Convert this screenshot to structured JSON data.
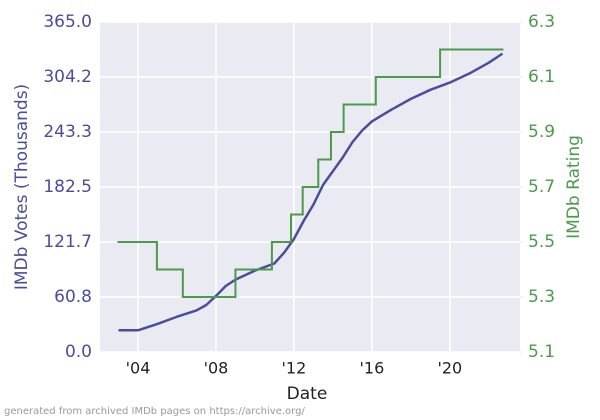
{
  "chart_data": {
    "type": "line",
    "xlabel": "Date",
    "ylabel": "IMDb Votes (Thousands)",
    "y2label": "IMDb Rating",
    "footnote": "generated from archived IMDb pages on https://archive.org/",
    "xlim": [
      2002.05,
      2023.6
    ],
    "xticks": [
      {
        "value": 2004,
        "label": "'04"
      },
      {
        "value": 2008,
        "label": "'08"
      },
      {
        "value": 2012,
        "label": "'12"
      },
      {
        "value": 2016,
        "label": "'16"
      },
      {
        "value": 2020,
        "label": "'20"
      }
    ],
    "ylim": [
      0,
      365
    ],
    "yticks": [
      {
        "value": 0,
        "label": "0.0"
      },
      60.8,
      121.7,
      182.5,
      243.3,
      304.2,
      {
        "value": 365,
        "label": "365.0"
      }
    ],
    "y2lim": [
      5.1,
      6.3
    ],
    "y2ticks": [
      5.1,
      5.3,
      5.5,
      5.7,
      5.9,
      6.1,
      6.3
    ],
    "grid": true,
    "series": [
      {
        "name": "IMDb Votes",
        "color": "#4c4c9c",
        "x": [
          2003.0,
          2004.0,
          2005.0,
          2006.0,
          2007.0,
          2007.5,
          2008.0,
          2008.5,
          2009.0,
          2010.0,
          2011.0,
          2011.5,
          2012.0,
          2012.5,
          2013.0,
          2013.5,
          2014.0,
          2014.5,
          2015.0,
          2015.5,
          2016.0,
          2017.0,
          2018.0,
          2019.0,
          2020.0,
          2021.0,
          2022.0,
          2022.7
        ],
        "values": [
          24,
          24,
          31,
          39,
          46,
          52,
          62,
          73,
          80,
          90,
          98,
          110,
          125,
          145,
          163,
          185,
          200,
          215,
          232,
          245,
          255,
          268,
          280,
          290,
          298,
          308,
          320,
          330
        ]
      },
      {
        "name": "IMDb Rating",
        "color": "#4c9a4c",
        "axis": "y2",
        "drawstyle": "steps-post",
        "x": [
          2003.0,
          2004.97,
          2006.3,
          2009.0,
          2010.87,
          2011.85,
          2012.45,
          2013.25,
          2013.9,
          2014.55,
          2016.2,
          2019.5,
          2022.7
        ],
        "values": [
          5.5,
          5.4,
          5.3,
          5.4,
          5.5,
          5.6,
          5.7,
          5.8,
          5.9,
          6.0,
          6.1,
          6.2,
          6.2
        ]
      }
    ]
  }
}
